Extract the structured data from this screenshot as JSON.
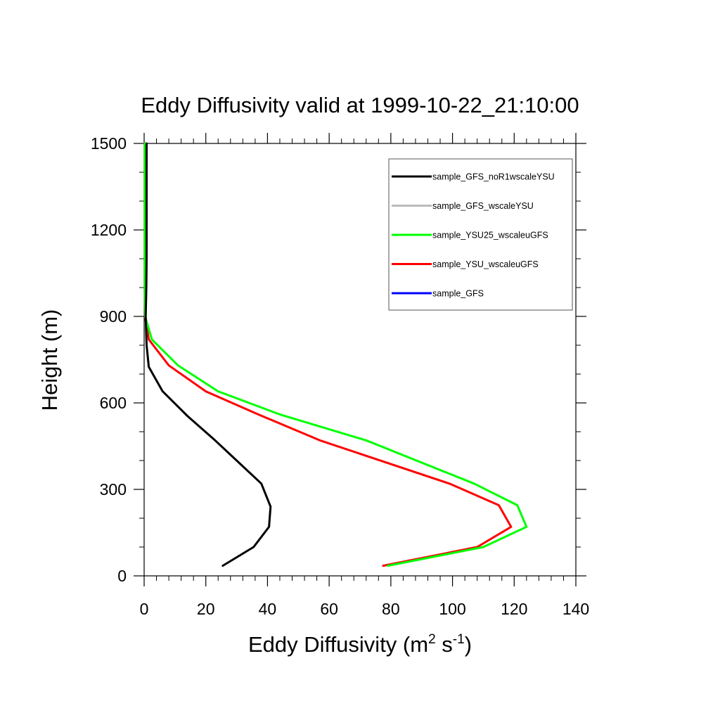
{
  "chart_data": {
    "type": "line",
    "title": "Eddy Diffusivity valid at 1999-10-22_21:10:00",
    "xlabel": "Eddy Diffusivity",
    "xlabel_unit_base": "m",
    "xlabel_unit_exp1": "2",
    "xlabel_unit_mid": " s",
    "xlabel_unit_exp2": "-1",
    "ylabel": "Height (m)",
    "xlim": [
      0,
      140
    ],
    "ylim": [
      0,
      1500
    ],
    "xticks": [
      0,
      20,
      40,
      60,
      80,
      100,
      120,
      140
    ],
    "yticks": [
      0,
      300,
      600,
      900,
      1200,
      1500
    ],
    "xticks_minor_step": 4,
    "yticks_minor_step": 100,
    "grid": false,
    "legend_position": "top-right",
    "series": [
      {
        "name": "sample_GFS_noR1wscaleYSU",
        "color": "#000000",
        "points": [
          [
            25.5,
            35
          ],
          [
            35.5,
            100
          ],
          [
            40.5,
            170
          ],
          [
            41,
            240
          ],
          [
            38,
            320
          ],
          [
            31,
            390
          ],
          [
            23,
            470
          ],
          [
            14,
            555
          ],
          [
            6,
            640
          ],
          [
            1.5,
            725
          ],
          [
            0.8,
            800
          ],
          [
            0.5,
            900
          ],
          [
            0.7,
            1000
          ],
          [
            0.8,
            1100
          ],
          [
            0.8,
            1200
          ],
          [
            0.8,
            1300
          ],
          [
            0.8,
            1400
          ],
          [
            0.8,
            1500
          ]
        ]
      },
      {
        "name": "sample_GFS_wscaleYSU",
        "color": "#bbbbbb",
        "points": []
      },
      {
        "name": "sample_YSU25_wscaleuGFS",
        "color": "#00ff00",
        "points": [
          [
            79,
            35
          ],
          [
            110,
            100
          ],
          [
            124,
            170
          ],
          [
            121,
            245
          ],
          [
            107,
            320
          ],
          [
            72,
            470
          ],
          [
            44,
            560
          ],
          [
            24,
            640
          ],
          [
            11,
            730
          ],
          [
            2.5,
            820
          ],
          [
            0.3,
            900
          ],
          [
            0.2,
            1000
          ],
          [
            0.2,
            1200
          ],
          [
            0.2,
            1500
          ]
        ]
      },
      {
        "name": "sample_YSU_wscaleuGFS",
        "color": "#ff0000",
        "points": [
          [
            77.5,
            35
          ],
          [
            108,
            100
          ],
          [
            119,
            170
          ],
          [
            115,
            245
          ],
          [
            99,
            320
          ],
          [
            57,
            470
          ],
          [
            37,
            560
          ],
          [
            20,
            640
          ],
          [
            8,
            730
          ],
          [
            1.5,
            820
          ],
          [
            0.3,
            900
          ],
          [
            0.2,
            1000
          ],
          [
            0.2,
            1200
          ],
          [
            0.2,
            1500
          ]
        ]
      },
      {
        "name": "sample_GFS",
        "color": "#0000ff",
        "points": []
      }
    ]
  }
}
